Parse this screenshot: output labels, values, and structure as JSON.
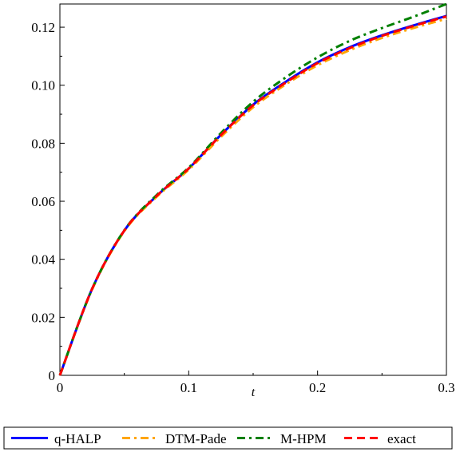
{
  "chart_data": {
    "type": "line",
    "xlabel": "t",
    "ylabel": "",
    "xlim": [
      0,
      0.3
    ],
    "ylim": [
      0,
      0.128
    ],
    "x_ticks": [
      0,
      0.1,
      0.2,
      0.3
    ],
    "x_tick_labels": [
      "0",
      "0.1",
      "0.2",
      "0.3"
    ],
    "y_ticks": [
      0,
      0.02,
      0.04,
      0.06,
      0.08,
      0.1,
      0.12
    ],
    "y_tick_labels": [
      "0",
      "0.02",
      "0.04",
      "0.06",
      "0.08",
      "0.10",
      "0.12"
    ],
    "grid": false,
    "legend_position": "bottom",
    "x": [
      0,
      0.025,
      0.05,
      0.075,
      0.1,
      0.125,
      0.15,
      0.175,
      0.2,
      0.225,
      0.25,
      0.275,
      0.3
    ],
    "series": [
      {
        "name": "q-HALP",
        "color": "#0000ff",
        "dash": "solid",
        "values": [
          0,
          0.0298,
          0.0499,
          0.0618,
          0.0713,
          0.0829,
          0.0933,
          0.1011,
          0.1079,
          0.1131,
          0.1172,
          0.1207,
          0.1239
        ]
      },
      {
        "name": "DTM-Pade",
        "color": "#ffa500",
        "dash": "dashdot",
        "values": [
          0,
          0.0296,
          0.0497,
          0.0615,
          0.0709,
          0.0822,
          0.0924,
          0.1002,
          0.1069,
          0.1121,
          0.1163,
          0.1198,
          0.1229
        ]
      },
      {
        "name": "M-HPM",
        "color": "#008000",
        "dash": "dashdot",
        "values": [
          0,
          0.0298,
          0.05,
          0.0621,
          0.0716,
          0.0835,
          0.0943,
          0.1026,
          0.1096,
          0.1153,
          0.1197,
          0.1237,
          0.128
        ]
      },
      {
        "name": "exact",
        "color": "#ff0000",
        "dash": "dash",
        "values": [
          0,
          0.0298,
          0.0499,
          0.0618,
          0.0713,
          0.0828,
          0.0931,
          0.1008,
          0.1076,
          0.1128,
          0.117,
          0.1205,
          0.1237
        ]
      }
    ]
  }
}
